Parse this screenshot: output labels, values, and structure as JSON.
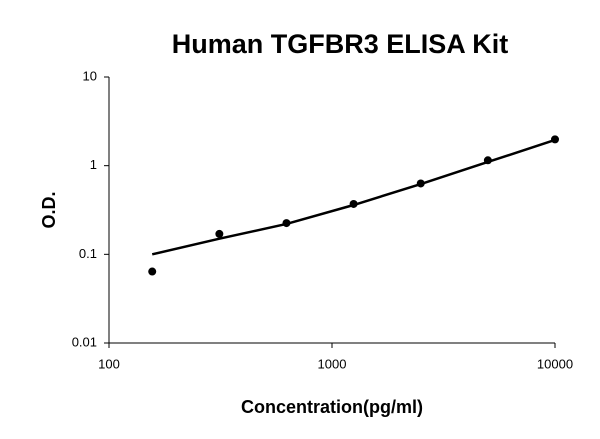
{
  "chart_data": {
    "type": "scatter",
    "title": "Human TGFBR3 ELISA Kit",
    "x_label": "Concentration(pg/ml)",
    "y_label": "O.D.",
    "log_x": true,
    "log_y": true,
    "xlim": [
      100,
      10000
    ],
    "xticks": [
      100,
      1000,
      10000
    ],
    "ylim": [
      0.01,
      10
    ],
    "yticks": [
      0.01,
      0.1,
      1,
      10
    ],
    "series": [
      {
        "mode": "markers",
        "color": "#000000",
        "x": [
          156.25,
          312.5,
          625,
          1250,
          2500,
          5000,
          10000
        ],
        "values": [
          0.064,
          0.17,
          0.225,
          0.37,
          0.63,
          1.15,
          1.98
        ]
      },
      {
        "mode": "line",
        "color": "#000000",
        "x": [
          156.25,
          312.5,
          625,
          1250,
          2500,
          5000,
          10000
        ],
        "values": [
          0.1,
          0.15,
          0.22,
          0.36,
          0.62,
          1.1,
          1.95
        ]
      }
    ]
  }
}
